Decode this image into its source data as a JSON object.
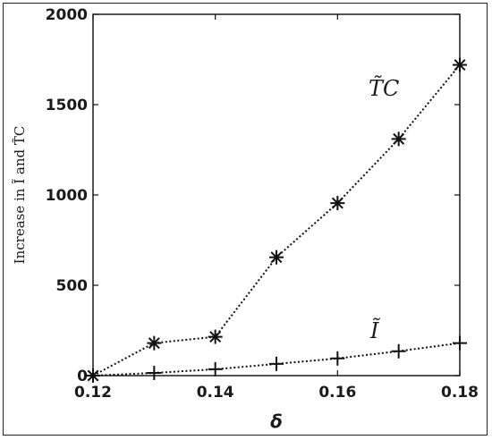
{
  "chart_data": {
    "type": "line",
    "title": "",
    "xlabel": "δ",
    "ylabel": "Increase in Ĩ and T̃C",
    "xlim": [
      0.12,
      0.18
    ],
    "ylim": [
      0,
      2000
    ],
    "xticks": [
      "0.12",
      "0.14",
      "0.16",
      "0.18"
    ],
    "yticks": [
      "0",
      "500",
      "1000",
      "1500",
      "2000"
    ],
    "grid": false,
    "legend": "none",
    "x": [
      0.12,
      0.13,
      0.14,
      0.15,
      0.16,
      0.17,
      0.18
    ],
    "series": [
      {
        "name": "T̃C",
        "marker": "asterisk",
        "line": "dotted",
        "values": [
          0,
          180,
          215,
          655,
          955,
          1310,
          1720
        ]
      },
      {
        "name": "Ĩ",
        "marker": "plus",
        "line": "dotted",
        "values": [
          0,
          15,
          35,
          65,
          95,
          135,
          180
        ]
      }
    ],
    "color": "#111111"
  }
}
